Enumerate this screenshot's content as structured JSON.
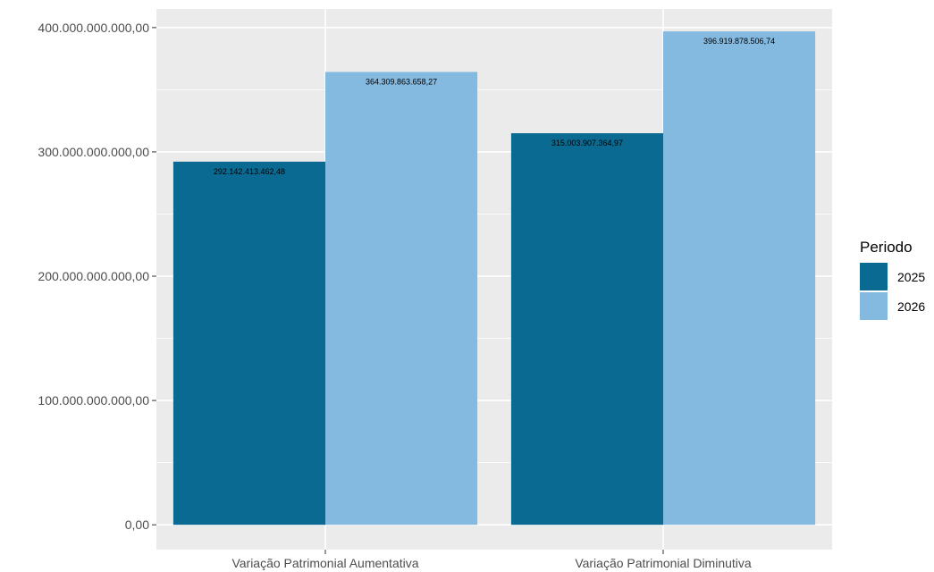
{
  "chart_data": {
    "type": "bar",
    "categories": [
      "Variação Patrimonial Aumentativa",
      "Variação Patrimonial Diminutiva"
    ],
    "series": [
      {
        "name": "2025",
        "color": "#0a6a92",
        "values": [
          292142413462.48,
          315003907364.97
        ],
        "labels": [
          "292.142.413.462,48",
          "315.003.907.364,97"
        ]
      },
      {
        "name": "2026",
        "color": "#84b9e0",
        "values": [
          364309863658.27,
          396919878506.74
        ],
        "labels": [
          "364.309.863.658,27",
          "396.919.878.506,74"
        ]
      }
    ],
    "y_ticks": [
      {
        "value": 0,
        "label": "0,00"
      },
      {
        "value": 100000000000,
        "label": "100.000.000.000,00"
      },
      {
        "value": 200000000000,
        "label": "200.000.000.000,00"
      },
      {
        "value": 300000000000,
        "label": "300.000.000.000,00"
      },
      {
        "value": 400000000000,
        "label": "400.000.000.000,00"
      }
    ],
    "ylim": [
      -20000000000,
      415000000000
    ],
    "legend": {
      "title": "Periodo",
      "position": "right"
    },
    "grid": true,
    "panel_background": "#ebebeb"
  }
}
